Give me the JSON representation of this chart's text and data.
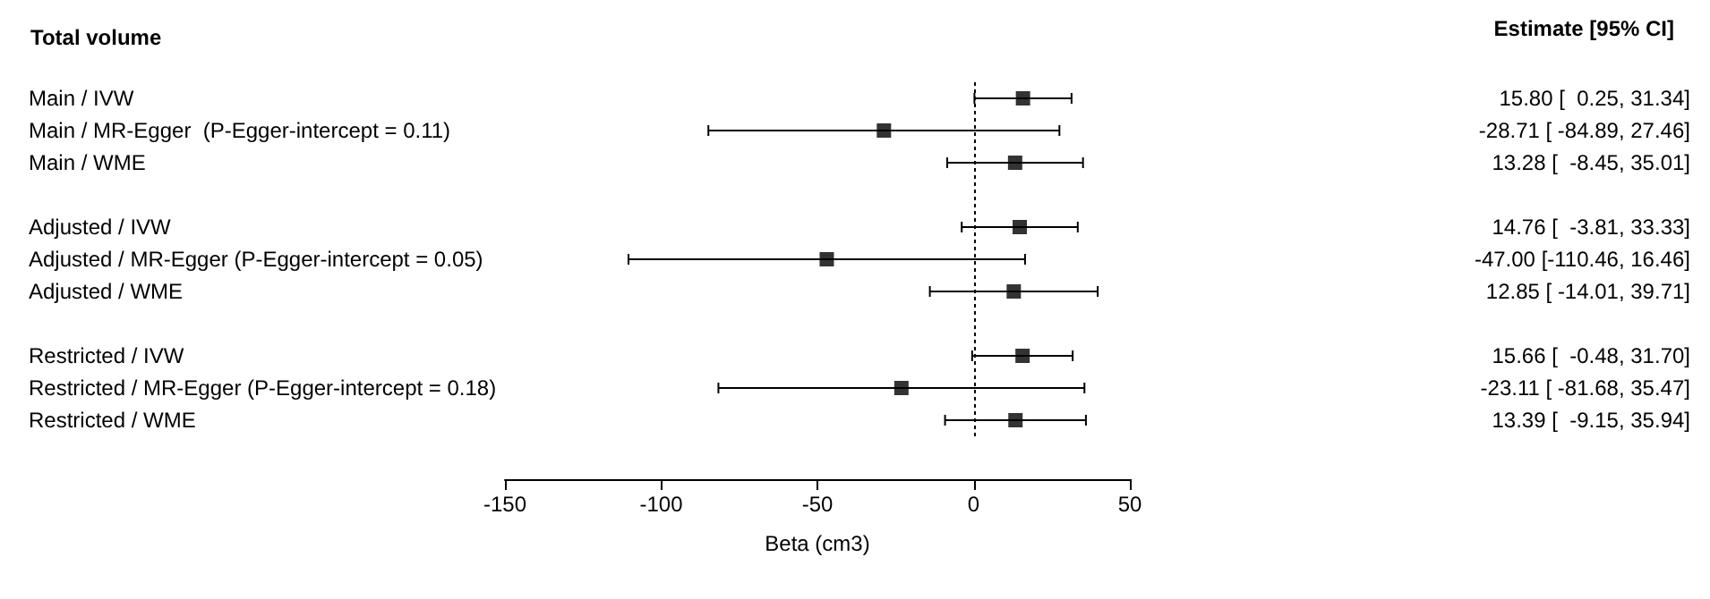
{
  "chart_data": {
    "type": "scatter",
    "orientation": "horizontal",
    "title": "Total volume",
    "xlabel": "Beta (cm3)",
    "annotations": [
      "Estimate [95% CI]"
    ],
    "categories": [
      "Main / IVW",
      "Main / MR-Egger  (P-Egger-intercept = 0.11)",
      "Main / WME",
      null,
      "Adjusted / IVW",
      "Adjusted / MR-Egger (P-Egger-intercept = 0.05)",
      "Adjusted / WME",
      null,
      "Restricted / IVW",
      "Restricted / MR-Egger (P-Egger-intercept = 0.18)",
      "Restricted / WME"
    ],
    "values": [
      15.8,
      -28.71,
      13.28,
      null,
      14.76,
      -47.0,
      12.85,
      null,
      15.66,
      -23.11,
      13.39
    ],
    "errors": [
      [
        0.25,
        31.34
      ],
      [
        -84.89,
        27.46
      ],
      [
        -8.45,
        35.01
      ],
      null,
      [
        -3.81,
        33.33
      ],
      [
        -110.46,
        16.46
      ],
      [
        -14.01,
        39.71
      ],
      null,
      [
        -0.48,
        31.7
      ],
      [
        -81.68,
        35.47
      ],
      [
        -9.15,
        35.94
      ]
    ],
    "value_labels": [
      "15.80 [  0.25, 31.34]",
      "-28.71 [ -84.89, 27.46]",
      "13.28 [  -8.45, 35.01]",
      null,
      "14.76 [  -3.81, 33.33]",
      "-47.00 [-110.46, 16.46]",
      "12.85 [ -14.01, 39.71]",
      null,
      "15.66 [  -0.48, 31.70]",
      "-23.11 [ -81.68, 35.47]",
      "13.39 [  -9.15, 35.94]"
    ],
    "color": "#000000",
    "marker": "square",
    "xlim": [
      -150,
      50
    ],
    "xticks": [
      -150,
      -100,
      -50,
      0,
      50
    ],
    "ref_lines": [
      {
        "axis": "x",
        "value": 0,
        "line_style": "dotted",
        "color": "#000000"
      }
    ],
    "grid": false
  }
}
